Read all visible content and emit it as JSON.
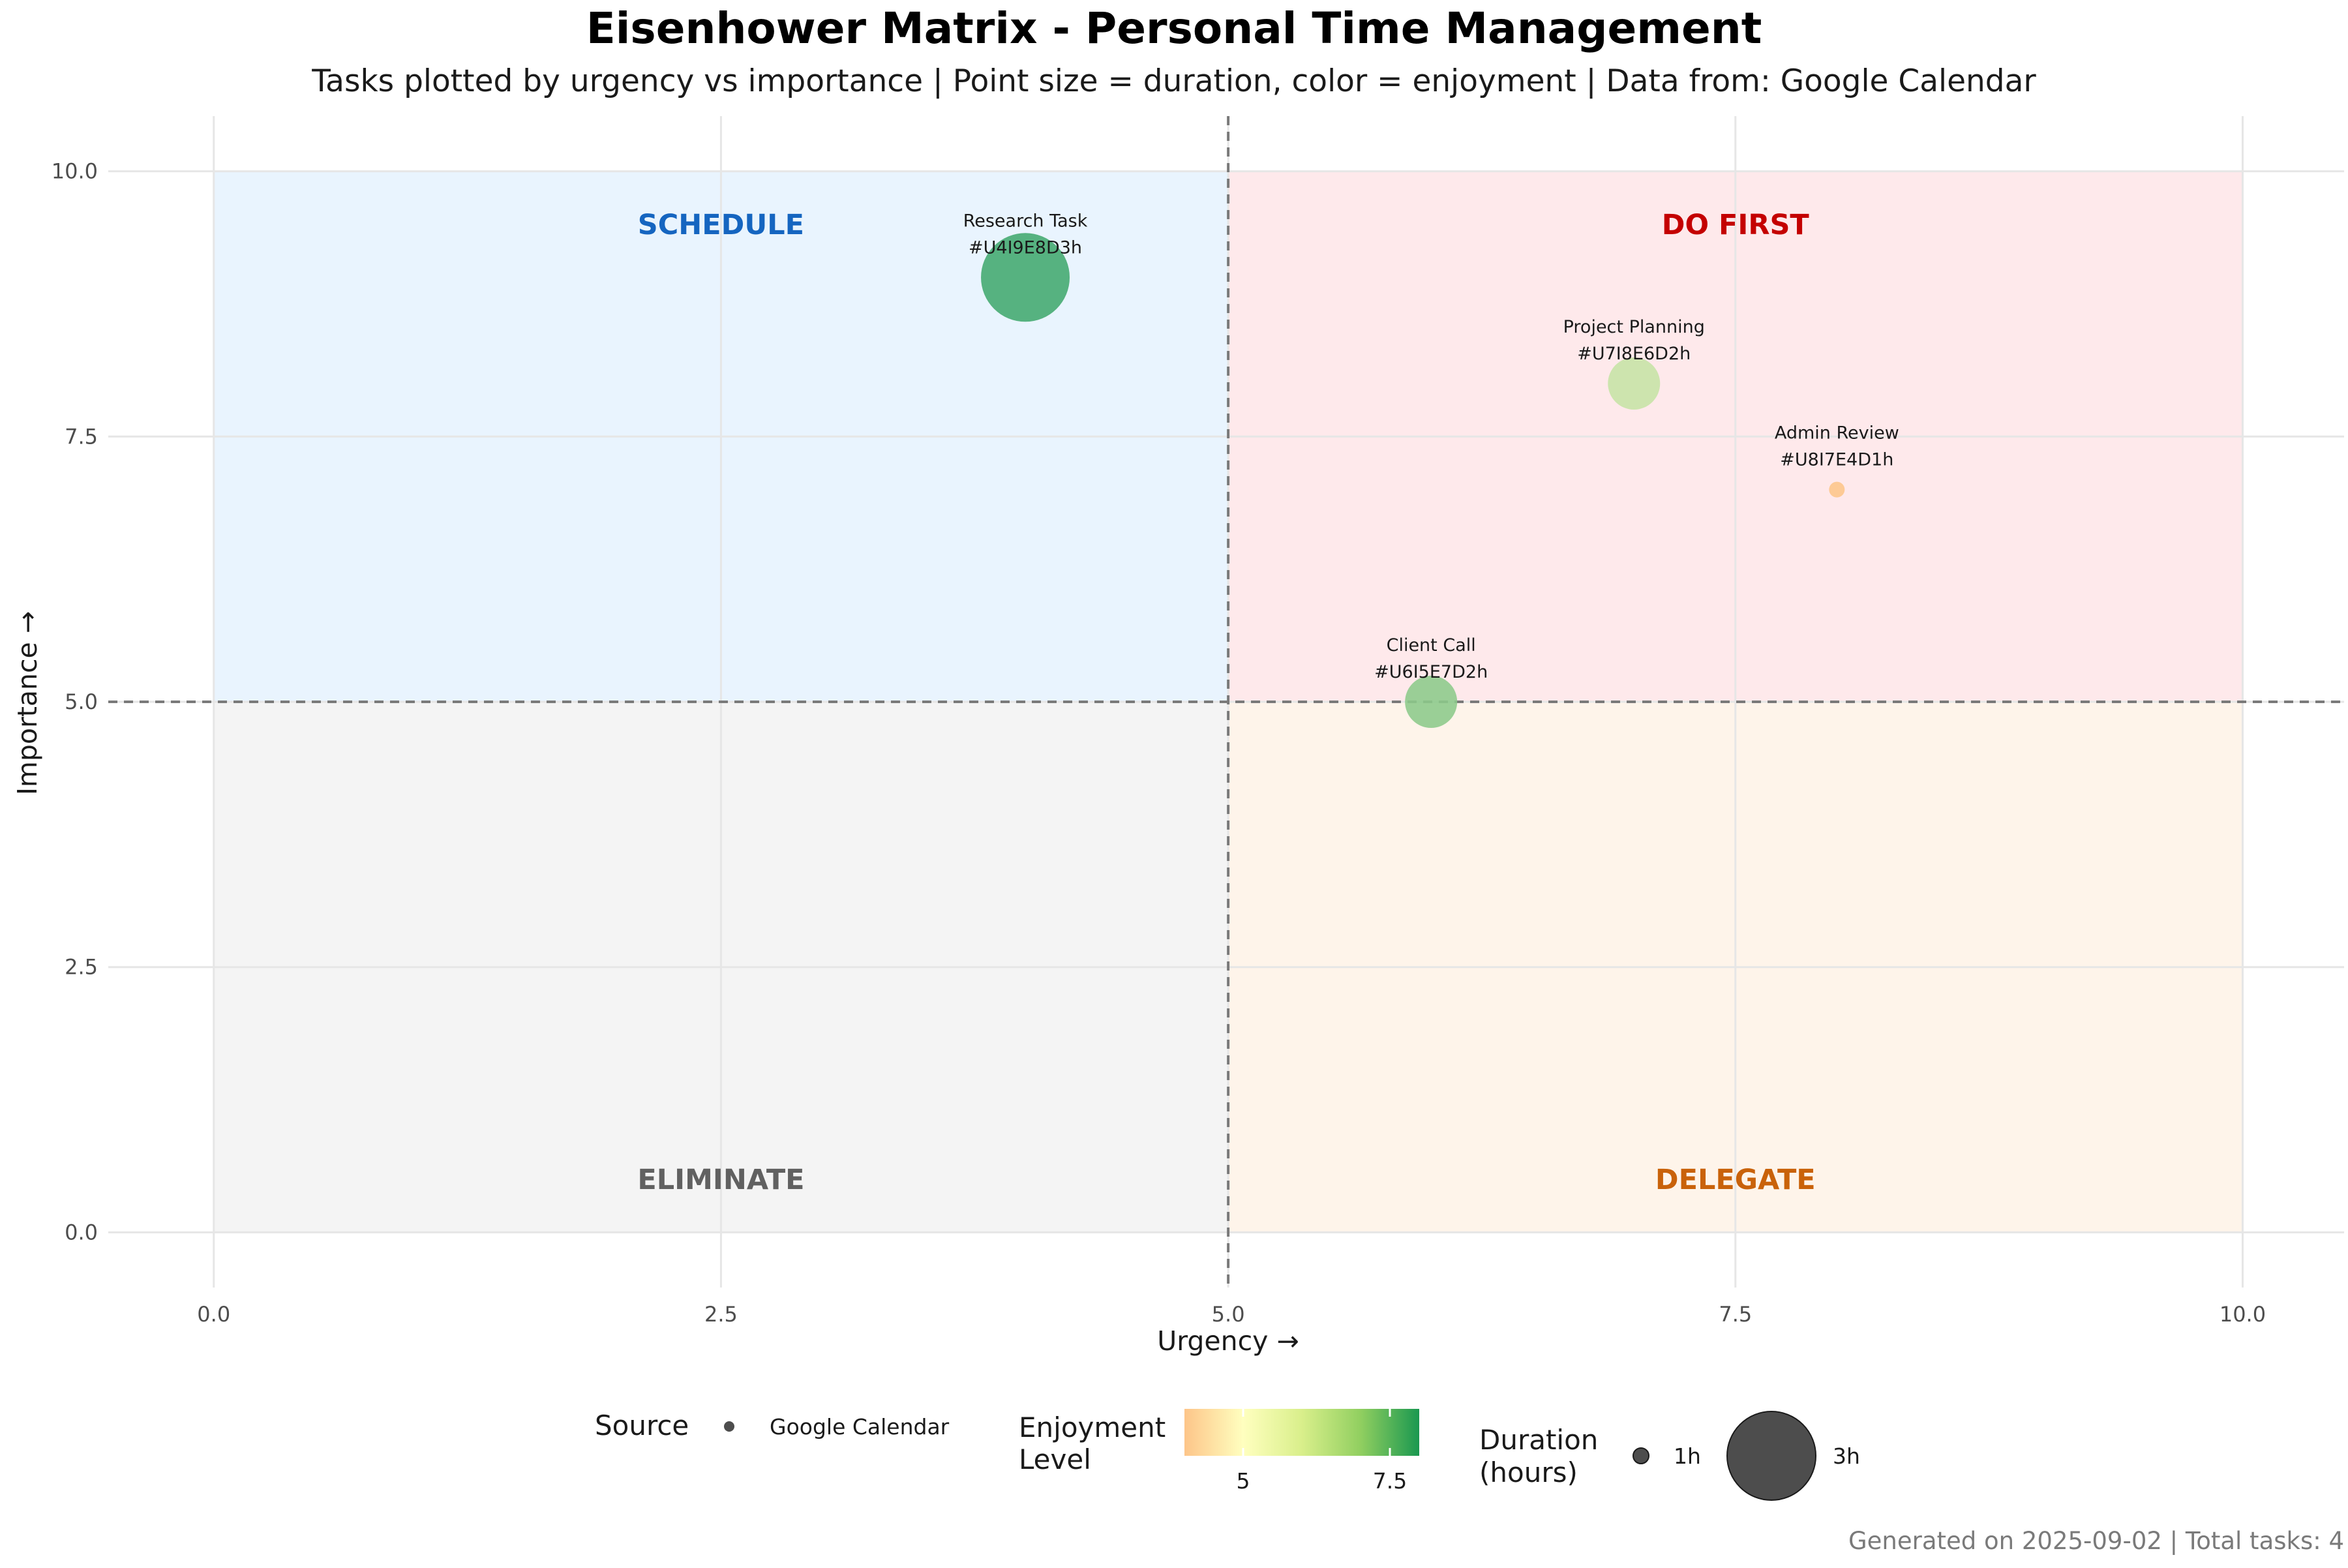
{
  "chart_data": {
    "type": "scatter",
    "title": "Eisenhower Matrix - Personal Time Management",
    "subtitle": "Tasks plotted by urgency vs importance | Point size = duration, color = enjoyment | Data from: Google Calendar",
    "xlabel": "Urgency →",
    "ylabel": "Importance →",
    "xlim": [
      -0.52,
      10.5
    ],
    "ylim": [
      -0.52,
      10.52
    ],
    "x_ticks": [
      0.0,
      2.5,
      5.0,
      7.5,
      10.0
    ],
    "y_ticks": [
      0.0,
      2.5,
      5.0,
      7.5,
      10.0
    ],
    "x_tick_labels": [
      "0.0",
      "2.5",
      "5.0",
      "7.5",
      "10.0"
    ],
    "y_tick_labels": [
      "0.0",
      "2.5",
      "5.0",
      "7.5",
      "10.0"
    ],
    "grid": true,
    "threshold_lines": {
      "x": 5.0,
      "y": 5.0
    },
    "quadrants": [
      {
        "name": "SCHEDULE",
        "x": [
          0,
          5
        ],
        "y": [
          5,
          10
        ],
        "fill": "#e9f4fe",
        "label_color": "#1565c0",
        "label_x": 2.5,
        "label_y": 9.5
      },
      {
        "name": "DO FIRST",
        "x": [
          5,
          10
        ],
        "y": [
          5,
          10
        ],
        "fill": "#fee9eb",
        "label_color": "#c40000",
        "label_x": 7.5,
        "label_y": 9.5
      },
      {
        "name": "ELIMINATE",
        "x": [
          0,
          5
        ],
        "y": [
          0,
          5
        ],
        "fill": "#f4f4f4",
        "label_color": "#616161",
        "label_x": 2.5,
        "label_y": 0.5
      },
      {
        "name": "DELEGATE",
        "x": [
          5,
          10
        ],
        "y": [
          0,
          5
        ],
        "fill": "#fef4ea",
        "label_color": "#c9620a",
        "label_x": 7.5,
        "label_y": 0.5
      }
    ],
    "points": [
      {
        "name": "Research Task",
        "code": "#U4I9E8D3h",
        "urgency": 4,
        "importance": 9,
        "duration_hours": 3,
        "enjoyment": 8,
        "color": "#41a86e"
      },
      {
        "name": "Project Planning",
        "code": "#U7I8E6D2h",
        "urgency": 7,
        "importance": 8,
        "duration_hours": 2,
        "enjoyment": 6,
        "color": "#c6e2a5"
      },
      {
        "name": "Admin Review",
        "code": "#U8I7E4D1h",
        "urgency": 8,
        "importance": 7,
        "duration_hours": 1,
        "enjoyment": 4,
        "color": "#fdc589"
      },
      {
        "name": "Client Call",
        "code": "#U6I5E7D2h",
        "urgency": 6,
        "importance": 5,
        "duration_hours": 2,
        "enjoyment": 7,
        "color": "#8cc98a"
      }
    ],
    "legends": {
      "source": {
        "title": "Source",
        "items": [
          "Google Calendar"
        ]
      },
      "enjoyment": {
        "title_lines": [
          "Enjoyment",
          "Level"
        ],
        "range": [
          4,
          8
        ],
        "colors": [
          "#fdc589",
          "#ffffbf",
          "#d9ef8b",
          "#91cf60",
          "#1a9850"
        ],
        "ticks": [
          5,
          7.5
        ],
        "tick_labels": [
          "5",
          "7.5"
        ]
      },
      "duration": {
        "title_lines": [
          "Duration",
          "(hours)"
        ],
        "items": [
          {
            "label": "1h",
            "hours": 1
          },
          {
            "label": "3h",
            "hours": 3
          }
        ]
      }
    },
    "caption": "Generated on 2025-09-02 | Total tasks: 4"
  }
}
